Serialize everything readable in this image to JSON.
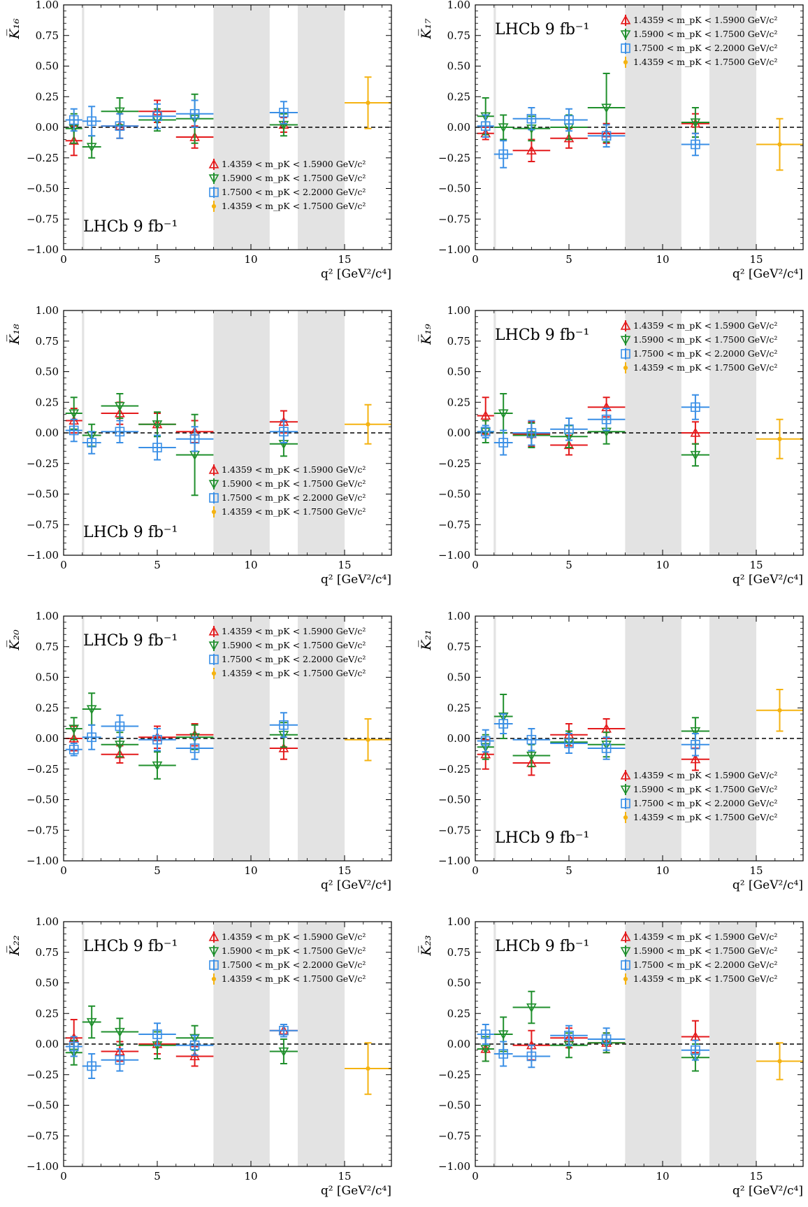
{
  "figure": {
    "common": {
      "x_ticks": [
        0,
        5,
        10,
        15
      ],
      "y_ticks": [
        "1.00",
        "0.75",
        "0.50",
        "0.25",
        "0.00",
        "−0.25",
        "−0.50",
        "−0.75",
        "−1.00"
      ],
      "xlabel": "q² [GeV²/c⁴]",
      "watermark": "LHCb 9 fb⁻¹",
      "series": [
        {
          "name": "1.4359 < m_pK < 1.5900 GeV/c²",
          "color": "#e41a1c",
          "marker": "triangle-up"
        },
        {
          "name": "1.5900 < m_pK < 1.7500 GeV/c²",
          "color": "#1f8f2c",
          "marker": "triangle-down"
        },
        {
          "name": "1.7500 < m_pK < 2.2000 GeV/c²",
          "color": "#3a8fe6",
          "marker": "square"
        },
        {
          "name": "1.4359 < m_pK < 1.7500 GeV/c²",
          "color": "#f5b311",
          "marker": "dot"
        }
      ],
      "vetoed_regions": [
        [
          0.98,
          1.1
        ],
        [
          8.0,
          11.0
        ],
        [
          12.5,
          15.0
        ]
      ]
    }
  },
  "chart_data": [
    {
      "type": "scatter",
      "ylabel": "K̅₁₆",
      "ylabel_main": "K",
      "ylabel_sub": "16",
      "xlim": [
        0,
        17.5
      ],
      "ylim": [
        -1.0,
        1.0
      ],
      "grid": false,
      "legend_position": "bottom-right",
      "watermark_position": "bottom-left",
      "series": [
        {
          "x": [
            0.55,
            3.0,
            5.0,
            7.0,
            11.75
          ],
          "xerr": [
            0.45,
            1.0,
            1.0,
            1.0,
            0.75
          ],
          "y": [
            -0.11,
            0.01,
            0.13,
            -0.08,
            0.02
          ],
          "yerr": [
            0.12,
            0.1,
            0.09,
            0.09,
            0.06
          ]
        },
        {
          "x": [
            0.55,
            1.5,
            3.0,
            5.0,
            7.0,
            11.75
          ],
          "xerr": [
            0.45,
            0.5,
            1.0,
            1.0,
            1.0,
            0.75
          ],
          "y": [
            -0.01,
            -0.16,
            0.13,
            0.06,
            0.07,
            0.02
          ],
          "yerr": [
            0.12,
            0.09,
            0.11,
            0.09,
            0.2,
            0.09
          ]
        },
        {
          "x": [
            0.55,
            1.5,
            3.0,
            5.0,
            7.0,
            11.75
          ],
          "xerr": [
            0.45,
            0.5,
            1.0,
            1.0,
            1.0,
            0.75
          ],
          "y": [
            0.06,
            0.05,
            0.01,
            0.09,
            0.11,
            0.12
          ],
          "yerr": [
            0.09,
            0.12,
            0.1,
            0.1,
            0.11,
            0.09
          ]
        },
        {
          "x": [
            16.25
          ],
          "xerr": [
            1.25
          ],
          "y": [
            0.2
          ],
          "yerr": [
            0.21
          ]
        }
      ]
    },
    {
      "type": "scatter",
      "ylabel": "K̅₁₇",
      "ylabel_main": "K",
      "ylabel_sub": "17",
      "xlim": [
        0,
        17.5
      ],
      "ylim": [
        -1.0,
        1.0
      ],
      "grid": false,
      "legend_position": "top-right",
      "watermark_position": "top-left",
      "series": [
        {
          "x": [
            0.55,
            3.0,
            5.0,
            7.0,
            11.75
          ],
          "xerr": [
            0.45,
            1.0,
            1.0,
            1.0,
            0.75
          ],
          "y": [
            -0.05,
            -0.19,
            -0.09,
            -0.05,
            0.03
          ],
          "yerr": [
            0.05,
            0.09,
            0.08,
            0.08,
            0.08
          ]
        },
        {
          "x": [
            0.55,
            1.5,
            3.0,
            5.0,
            7.0,
            11.75
          ],
          "xerr": [
            0.45,
            0.5,
            1.0,
            1.0,
            1.0,
            0.75
          ],
          "y": [
            0.09,
            0.0,
            -0.01,
            0.0,
            0.16,
            0.04
          ],
          "yerr": [
            0.15,
            0.1,
            0.1,
            0.1,
            0.28,
            0.12
          ]
        },
        {
          "x": [
            0.55,
            1.5,
            3.0,
            5.0,
            7.0,
            11.75
          ],
          "xerr": [
            0.45,
            0.5,
            1.0,
            1.0,
            1.0,
            0.75
          ],
          "y": [
            0.01,
            -0.22,
            0.07,
            0.06,
            -0.07,
            -0.14
          ],
          "yerr": [
            0.09,
            0.11,
            0.09,
            0.09,
            0.09,
            0.09
          ]
        },
        {
          "x": [
            16.25
          ],
          "xerr": [
            1.25
          ],
          "y": [
            -0.14
          ],
          "yerr": [
            0.21
          ]
        }
      ]
    },
    {
      "type": "scatter",
      "ylabel": "K̅₁₈",
      "ylabel_main": "K",
      "ylabel_sub": "18",
      "xlim": [
        0,
        17.5
      ],
      "ylim": [
        -1.0,
        1.0
      ],
      "grid": false,
      "legend_position": "bottom-right",
      "watermark_position": "bottom-left",
      "series": [
        {
          "x": [
            0.55,
            3.0,
            5.0,
            7.0,
            11.75
          ],
          "xerr": [
            0.45,
            1.0,
            1.0,
            1.0,
            0.75
          ],
          "y": [
            0.1,
            0.16,
            0.07,
            0.01,
            0.09
          ],
          "yerr": [
            0.1,
            0.09,
            0.09,
            0.09,
            0.09
          ]
        },
        {
          "x": [
            0.55,
            1.5,
            3.0,
            5.0,
            7.0,
            11.75
          ],
          "xerr": [
            0.45,
            0.5,
            1.0,
            1.0,
            1.0,
            0.75
          ],
          "y": [
            0.16,
            -0.02,
            0.22,
            0.07,
            -0.18,
            -0.09
          ],
          "yerr": [
            0.13,
            0.09,
            0.1,
            0.1,
            0.33,
            0.1
          ]
        },
        {
          "x": [
            0.55,
            1.5,
            3.0,
            5.0,
            7.0,
            11.75
          ],
          "xerr": [
            0.45,
            0.5,
            1.0,
            1.0,
            1.0,
            0.75
          ],
          "y": [
            0.02,
            -0.08,
            0.01,
            -0.12,
            -0.05,
            0.01
          ],
          "yerr": [
            0.09,
            0.09,
            0.09,
            0.1,
            0.1,
            0.09
          ]
        },
        {
          "x": [
            16.25
          ],
          "xerr": [
            1.25
          ],
          "y": [
            0.07
          ],
          "yerr": [
            0.16
          ]
        }
      ]
    },
    {
      "type": "scatter",
      "ylabel": "K̅₁₉",
      "ylabel_main": "K",
      "ylabel_sub": "19",
      "xlim": [
        0,
        17.5
      ],
      "ylim": [
        -1.0,
        1.0
      ],
      "grid": false,
      "legend_position": "top-right",
      "watermark_position": "top-left",
      "series": [
        {
          "x": [
            0.55,
            3.0,
            5.0,
            7.0,
            11.75
          ],
          "xerr": [
            0.45,
            1.0,
            1.0,
            1.0,
            0.75
          ],
          "y": [
            0.14,
            -0.01,
            -0.1,
            0.21,
            0.0
          ],
          "yerr": [
            0.15,
            0.1,
            0.08,
            0.08,
            0.09
          ]
        },
        {
          "x": [
            0.55,
            1.5,
            3.0,
            5.0,
            7.0,
            11.75
          ],
          "xerr": [
            0.45,
            0.5,
            1.0,
            1.0,
            1.0,
            0.75
          ],
          "y": [
            0.01,
            0.16,
            -0.02,
            -0.03,
            0.01,
            -0.18
          ],
          "yerr": [
            0.09,
            0.16,
            0.1,
            0.09,
            0.1,
            0.09
          ]
        },
        {
          "x": [
            0.55,
            1.5,
            3.0,
            5.0,
            7.0,
            11.75
          ],
          "xerr": [
            0.45,
            0.5,
            1.0,
            1.0,
            1.0,
            0.75
          ],
          "y": [
            0.01,
            -0.08,
            0.0,
            0.03,
            0.11,
            0.21
          ],
          "yerr": [
            0.05,
            0.1,
            0.1,
            0.09,
            0.09,
            0.1
          ]
        },
        {
          "x": [
            16.25
          ],
          "xerr": [
            1.25
          ],
          "y": [
            -0.05
          ],
          "yerr": [
            0.16
          ]
        }
      ]
    },
    {
      "type": "scatter",
      "ylabel": "K̅₂₀",
      "ylabel_main": "K",
      "ylabel_sub": "20",
      "xlim": [
        0,
        17.5
      ],
      "ylim": [
        -1.0,
        1.0
      ],
      "grid": false,
      "legend_position": "top-right",
      "watermark_position": "top-left",
      "series": [
        {
          "x": [
            0.55,
            3.0,
            5.0,
            7.0,
            11.75
          ],
          "xerr": [
            0.45,
            1.0,
            1.0,
            1.0,
            0.75
          ],
          "y": [
            0.0,
            -0.13,
            0.01,
            0.03,
            -0.08
          ],
          "yerr": [
            0.1,
            0.07,
            0.09,
            0.09,
            0.09
          ]
        },
        {
          "x": [
            0.55,
            1.5,
            3.0,
            5.0,
            7.0,
            11.75
          ],
          "xerr": [
            0.45,
            0.5,
            1.0,
            1.0,
            1.0,
            0.75
          ],
          "y": [
            0.08,
            0.24,
            -0.05,
            -0.22,
            0.01,
            0.03
          ],
          "yerr": [
            0.09,
            0.13,
            0.1,
            0.11,
            0.1,
            0.1
          ]
        },
        {
          "x": [
            0.55,
            1.5,
            3.0,
            5.0,
            7.0,
            11.75
          ],
          "xerr": [
            0.45,
            0.5,
            1.0,
            1.0,
            1.0,
            0.75
          ],
          "y": [
            -0.09,
            0.01,
            0.1,
            -0.01,
            -0.08,
            0.11
          ],
          "yerr": [
            0.05,
            0.1,
            0.09,
            0.09,
            0.09,
            0.1
          ]
        },
        {
          "x": [
            16.25
          ],
          "xerr": [
            1.25
          ],
          "y": [
            -0.01
          ],
          "yerr": [
            0.17
          ]
        }
      ]
    },
    {
      "type": "scatter",
      "ylabel": "K̅₂₁",
      "ylabel_main": "K",
      "ylabel_sub": "21",
      "xlim": [
        0,
        17.5
      ],
      "ylim": [
        -1.0,
        1.0
      ],
      "grid": false,
      "legend_position": "bottom-right",
      "watermark_position": "bottom-left",
      "series": [
        {
          "x": [
            0.55,
            3.0,
            5.0,
            7.0,
            11.75
          ],
          "xerr": [
            0.45,
            1.0,
            1.0,
            1.0,
            0.75
          ],
          "y": [
            -0.13,
            -0.2,
            0.03,
            0.08,
            -0.17
          ],
          "yerr": [
            0.12,
            0.1,
            0.09,
            0.08,
            0.09
          ]
        },
        {
          "x": [
            0.55,
            1.5,
            3.0,
            5.0,
            7.0,
            11.75
          ],
          "xerr": [
            0.45,
            0.5,
            1.0,
            1.0,
            1.0,
            0.75
          ],
          "y": [
            -0.07,
            0.18,
            -0.14,
            -0.03,
            -0.05,
            0.06
          ],
          "yerr": [
            0.1,
            0.18,
            0.09,
            0.09,
            0.1,
            0.11
          ]
        },
        {
          "x": [
            0.55,
            1.5,
            3.0,
            5.0,
            7.0,
            11.75
          ],
          "xerr": [
            0.45,
            0.5,
            1.0,
            1.0,
            1.0,
            0.75
          ],
          "y": [
            -0.02,
            0.12,
            -0.01,
            -0.04,
            -0.08,
            -0.05
          ],
          "yerr": [
            0.09,
            0.08,
            0.09,
            0.08,
            0.09,
            0.09
          ]
        },
        {
          "x": [
            16.25
          ],
          "xerr": [
            1.25
          ],
          "y": [
            0.23
          ],
          "yerr": [
            0.17
          ]
        }
      ]
    },
    {
      "type": "scatter",
      "ylabel": "K̅₂₂",
      "ylabel_main": "K",
      "ylabel_sub": "22",
      "xlim": [
        0,
        17.5
      ],
      "ylim": [
        -1.0,
        1.0
      ],
      "grid": false,
      "legend_position": "top-right",
      "watermark_position": "top-left",
      "series": [
        {
          "x": [
            0.55,
            3.0,
            5.0,
            7.0,
            11.75
          ],
          "xerr": [
            0.45,
            1.0,
            1.0,
            1.0,
            0.75
          ],
          "y": [
            0.05,
            -0.06,
            0.0,
            -0.1,
            0.11
          ],
          "yerr": [
            0.15,
            0.08,
            0.08,
            0.08,
            0.05
          ]
        },
        {
          "x": [
            0.55,
            1.5,
            3.0,
            5.0,
            7.0,
            11.75
          ],
          "xerr": [
            0.45,
            0.5,
            1.0,
            1.0,
            1.0,
            0.75
          ],
          "y": [
            -0.07,
            0.18,
            0.1,
            -0.01,
            0.05,
            -0.06
          ],
          "yerr": [
            0.1,
            0.13,
            0.11,
            0.11,
            0.1,
            0.1
          ]
        },
        {
          "x": [
            0.55,
            1.5,
            3.0,
            5.0,
            7.0,
            11.75
          ],
          "xerr": [
            0.45,
            0.5,
            1.0,
            1.0,
            1.0,
            0.75
          ],
          "y": [
            -0.02,
            -0.18,
            -0.13,
            0.08,
            -0.01,
            0.11
          ],
          "yerr": [
            0.08,
            0.1,
            0.09,
            0.09,
            0.08,
            0.05
          ]
        },
        {
          "x": [
            16.25
          ],
          "xerr": [
            1.25
          ],
          "y": [
            -0.2
          ],
          "yerr": [
            0.21
          ]
        }
      ]
    },
    {
      "type": "scatter",
      "ylabel": "K̅₂₃",
      "ylabel_main": "K",
      "ylabel_sub": "23",
      "xlim": [
        0,
        17.5
      ],
      "ylim": [
        -1.0,
        1.0
      ],
      "grid": false,
      "legend_position": "top-right",
      "watermark_position": "top-left",
      "series": [
        {
          "x": [
            0.55,
            3.0,
            5.0,
            7.0,
            11.75
          ],
          "xerr": [
            0.45,
            1.0,
            1.0,
            1.0,
            0.75
          ],
          "y": [
            -0.04,
            -0.01,
            0.05,
            0.01,
            0.06
          ],
          "yerr": [
            0.1,
            0.12,
            0.08,
            0.08,
            0.13
          ]
        },
        {
          "x": [
            0.55,
            1.5,
            3.0,
            5.0,
            7.0,
            11.75
          ],
          "xerr": [
            0.45,
            0.5,
            1.0,
            1.0,
            1.0,
            0.75
          ],
          "y": [
            -0.04,
            0.08,
            0.3,
            -0.01,
            0.01,
            -0.11
          ],
          "yerr": [
            0.1,
            0.14,
            0.13,
            0.1,
            0.08,
            0.11
          ]
        },
        {
          "x": [
            0.55,
            1.5,
            3.0,
            5.0,
            7.0,
            11.75
          ],
          "xerr": [
            0.45,
            0.5,
            1.0,
            1.0,
            1.0,
            0.75
          ],
          "y": [
            0.08,
            -0.08,
            -0.1,
            0.07,
            0.04,
            -0.05
          ],
          "yerr": [
            0.08,
            0.1,
            0.09,
            0.08,
            0.09,
            0.08
          ]
        },
        {
          "x": [
            16.25
          ],
          "xerr": [
            1.25
          ],
          "y": [
            -0.14
          ],
          "yerr": [
            0.15
          ]
        }
      ]
    }
  ]
}
